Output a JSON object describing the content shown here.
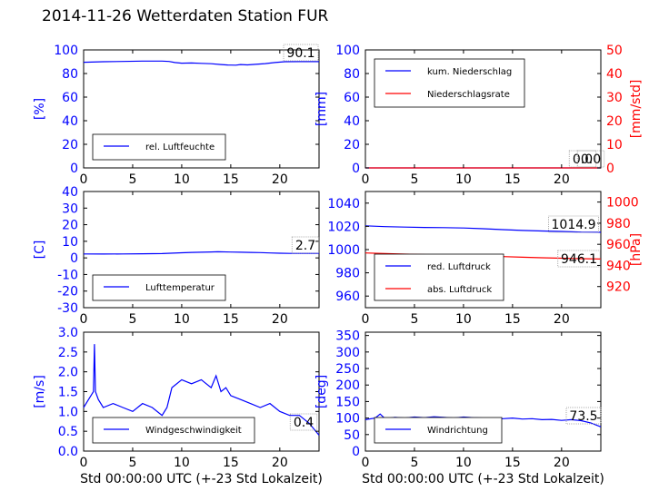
{
  "title": "2014-11-26 Wetterdaten Station FUR",
  "colors": {
    "primary": "#0000ff",
    "secondary": "#ff0000",
    "axis": "#000000"
  },
  "chart_data": [
    {
      "id": "humidity",
      "type": "line",
      "ylabel": "[%]",
      "ylim": [
        0,
        100
      ],
      "yticks": [
        0,
        20,
        40,
        60,
        80,
        100
      ],
      "xlim": [
        0,
        24
      ],
      "xticks": [
        0,
        5,
        10,
        15,
        20
      ],
      "current_value_label": "90.1",
      "legend": "top-left? no",
      "legend_entries": [
        "rel. Luftfeuchte"
      ],
      "series": [
        {
          "name": "rel. Luftfeuchte",
          "color": "#0000ff",
          "x": [
            0,
            2,
            4,
            6,
            8,
            8.7,
            9.3,
            10,
            11,
            12,
            13,
            14,
            14.7,
            15.5,
            16,
            16.7,
            17.5,
            18.5,
            19.5,
            20.5,
            22,
            24
          ],
          "y": [
            89.5,
            90.0,
            90.2,
            90.5,
            90.5,
            90.2,
            89.3,
            88.8,
            88.9,
            88.6,
            88.3,
            87.6,
            87.2,
            87.1,
            87.6,
            87.3,
            87.8,
            88.4,
            89.3,
            90.0,
            90.1,
            90.1
          ]
        }
      ]
    },
    {
      "id": "precip",
      "type": "line",
      "ylabel": "[mm]",
      "ylim": [
        0,
        100
      ],
      "yticks": [
        0,
        20,
        40,
        60,
        80,
        100
      ],
      "ylabel2": "[mm/std]",
      "ylim2": [
        0,
        50
      ],
      "yticks2": [
        0,
        10,
        20,
        30,
        40,
        50
      ],
      "xlim": [
        0,
        24
      ],
      "xticks": [
        0,
        5,
        10,
        15,
        20
      ],
      "current_value_labels": [
        "0.0",
        "0.0"
      ],
      "legend_entries": [
        "kum. Niederschlag",
        "Niederschlagsrate"
      ],
      "series": [
        {
          "name": "kum. Niederschlag",
          "color": "#0000ff",
          "x": [
            0,
            24
          ],
          "y": [
            0,
            0
          ]
        },
        {
          "name": "Niederschlagsrate",
          "color": "#ff0000",
          "axis": "right",
          "x": [
            0,
            24
          ],
          "y": [
            0,
            0
          ]
        }
      ]
    },
    {
      "id": "temperature",
      "type": "line",
      "ylabel": "[C]",
      "ylim": [
        -30,
        40
      ],
      "yticks": [
        -30,
        -20,
        -10,
        0,
        10,
        20,
        30,
        40
      ],
      "xlim": [
        0,
        24
      ],
      "xticks": [
        0,
        5,
        10,
        15,
        20
      ],
      "current_value_label": "2.7",
      "legend_entries": [
        "Lufttemperatur"
      ],
      "series": [
        {
          "name": "Lufttemperatur",
          "color": "#0000ff",
          "x": [
            0,
            2,
            4,
            6,
            8,
            10,
            11,
            12,
            13,
            13.7,
            15,
            16,
            17,
            18,
            19,
            20,
            21,
            22,
            24
          ],
          "y": [
            2.4,
            2.3,
            2.4,
            2.5,
            2.6,
            3.1,
            3.3,
            3.4,
            3.6,
            3.7,
            3.5,
            3.4,
            3.3,
            3.2,
            3.0,
            2.8,
            2.7,
            2.7,
            2.7
          ]
        }
      ]
    },
    {
      "id": "pressure",
      "type": "line",
      "ylim": [
        950,
        1050
      ],
      "yticks": [
        960,
        980,
        1000,
        1020,
        1040
      ],
      "ylabel2": "[hPa]",
      "ylim2": [
        900,
        1010
      ],
      "yticks2": [
        920,
        940,
        960,
        980,
        1000
      ],
      "xlim": [
        0,
        24
      ],
      "xticks": [
        0,
        5,
        10,
        15,
        20
      ],
      "current_value_labels": [
        "1014.9",
        "946.1"
      ],
      "legend_entries": [
        "red. Luftdruck",
        "abs. Luftdruck"
      ],
      "series": [
        {
          "name": "red. Luftdruck",
          "color": "#0000ff",
          "x": [
            0,
            2,
            4,
            6,
            8,
            10,
            12,
            14,
            16,
            18,
            20,
            22,
            24
          ],
          "y": [
            1020.5,
            1019.8,
            1019.4,
            1019.1,
            1018.9,
            1018.6,
            1018.0,
            1017.2,
            1016.5,
            1016.0,
            1015.6,
            1015.1,
            1014.9
          ]
        },
        {
          "name": "abs. Luftdruck",
          "color": "#ff0000",
          "axis": "right",
          "x": [
            0,
            2,
            4,
            6,
            8,
            10,
            12,
            14,
            16,
            18,
            20,
            22,
            24
          ],
          "y": [
            951.8,
            951.2,
            950.7,
            950.3,
            950.0,
            949.6,
            949.0,
            948.4,
            947.8,
            947.3,
            946.8,
            946.4,
            946.1
          ]
        }
      ]
    },
    {
      "id": "wind_speed",
      "type": "line",
      "ylabel": "[m/s]",
      "ylim": [
        0,
        3
      ],
      "yticks": [
        0.0,
        0.5,
        1.0,
        1.5,
        2.0,
        2.5,
        3.0
      ],
      "xlim": [
        0,
        24
      ],
      "xticks": [
        0,
        5,
        10,
        15,
        20
      ],
      "xlabel": "Std 00:00:00 UTC (+-23 Std Lokalzeit)",
      "current_value_label": "0.4",
      "legend_entries": [
        "Windgeschwindigkeit"
      ],
      "series": [
        {
          "name": "Windgeschwindigkeit",
          "color": "#0000ff",
          "x": [
            0,
            0.5,
            1.0,
            1.1,
            1.2,
            1.5,
            2,
            3,
            4,
            5,
            6,
            7,
            8,
            8.5,
            9,
            10,
            11,
            12,
            12.5,
            13,
            13.5,
            14,
            14.5,
            15,
            16,
            17,
            18,
            19,
            20,
            21,
            22,
            23,
            24
          ],
          "y": [
            1.1,
            1.3,
            1.5,
            2.7,
            1.5,
            1.3,
            1.1,
            1.2,
            1.1,
            1.0,
            1.2,
            1.1,
            0.9,
            1.1,
            1.6,
            1.8,
            1.7,
            1.8,
            1.7,
            1.6,
            1.9,
            1.5,
            1.6,
            1.4,
            1.3,
            1.2,
            1.1,
            1.2,
            1.0,
            0.9,
            0.9,
            0.7,
            0.4
          ]
        }
      ]
    },
    {
      "id": "wind_dir",
      "type": "line",
      "ylabel": "[deg]",
      "ylim": [
        0,
        360
      ],
      "yticks": [
        0,
        50,
        100,
        150,
        200,
        250,
        300,
        350
      ],
      "xlim": [
        0,
        24
      ],
      "xticks": [
        0,
        5,
        10,
        15,
        20
      ],
      "xlabel": "Std 00:00:00 UTC (+-23 Std Lokalzeit)",
      "current_value_label": "73.5",
      "legend_entries": [
        "Windrichtung"
      ],
      "series": [
        {
          "name": "Windrichtung",
          "color": "#0000ff",
          "x": [
            0,
            1,
            1.5,
            2,
            3,
            4,
            5,
            6,
            7,
            8,
            9,
            10,
            11,
            12,
            13,
            14,
            15,
            16,
            17,
            18,
            19,
            20,
            21,
            22,
            23,
            24
          ],
          "y": [
            95,
            100,
            112,
            98,
            102,
            100,
            103,
            101,
            104,
            102,
            100,
            103,
            101,
            100,
            99,
            98,
            100,
            97,
            98,
            95,
            96,
            93,
            95,
            92,
            85,
            73.5
          ]
        }
      ]
    }
  ]
}
